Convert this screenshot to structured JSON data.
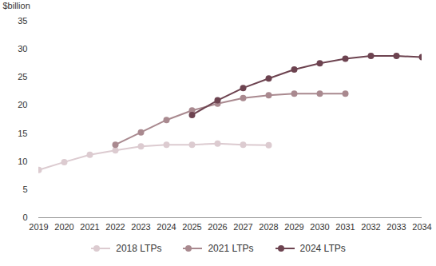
{
  "chart_data": {
    "type": "line",
    "y_label": "$billion",
    "x": [
      2019,
      2020,
      2021,
      2022,
      2023,
      2024,
      2025,
      2026,
      2027,
      2028,
      2029,
      2030,
      2031,
      2032,
      2033,
      2034
    ],
    "series": [
      {
        "name": "2018 LTPs",
        "color": "#dccbd0",
        "marker": "circle",
        "values": [
          8.5,
          9.9,
          11.2,
          12.0,
          12.7,
          13.0,
          13.0,
          13.2,
          13.0,
          12.9,
          null,
          null,
          null,
          null,
          null,
          null
        ]
      },
      {
        "name": "2021 LTPs",
        "color": "#a9898f",
        "marker": "circle",
        "values": [
          null,
          null,
          null,
          13.0,
          15.2,
          17.4,
          19.1,
          20.3,
          21.3,
          21.8,
          22.1,
          22.1,
          22.1,
          null,
          null,
          null
        ]
      },
      {
        "name": "2024 LTPs",
        "color": "#6d4350",
        "marker": "circle",
        "values": [
          null,
          null,
          null,
          null,
          null,
          null,
          18.3,
          20.9,
          23.1,
          24.8,
          26.4,
          27.5,
          28.3,
          28.8,
          28.8,
          28.6
        ]
      }
    ],
    "xlim": [
      2019,
      2034
    ],
    "xticks": [
      2019,
      2020,
      2021,
      2022,
      2023,
      2024,
      2025,
      2026,
      2027,
      2028,
      2029,
      2030,
      2031,
      2032,
      2033,
      2034
    ],
    "ylim": [
      0,
      35
    ],
    "yticks": [
      0,
      5,
      10,
      15,
      20,
      25,
      30,
      35
    ],
    "grid": false,
    "legend": "bottom"
  }
}
